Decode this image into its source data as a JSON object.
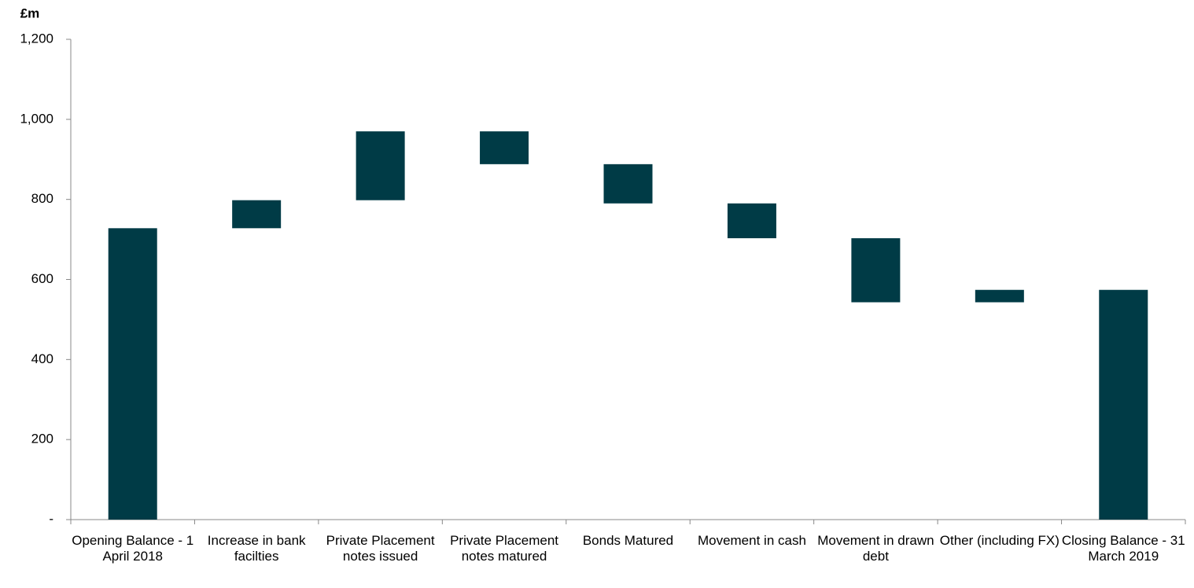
{
  "chart_data": {
    "type": "waterfall",
    "y_label": "£m",
    "categories": [
      "Opening Balance - 1 April 2018",
      "Increase in bank facilties",
      "Private Placement notes issued",
      "Private Placement notes matured",
      "Bonds Matured",
      "Movement in cash",
      "Movement in drawn debt",
      "Other (including FX)",
      "Closing Balance - 31 March 2019"
    ],
    "values": [
      728,
      70,
      172,
      -82,
      -98,
      -87,
      -160,
      31,
      574
    ],
    "color": "#003b46",
    "ylim": [
      0,
      1200
    ],
    "yticks": [
      {
        "value": 0,
        "label": "-"
      },
      200,
      400,
      600,
      800,
      {
        "value": 1000,
        "label": "1,000"
      },
      {
        "value": 1200,
        "label": "1,200"
      }
    ],
    "grid": false
  }
}
